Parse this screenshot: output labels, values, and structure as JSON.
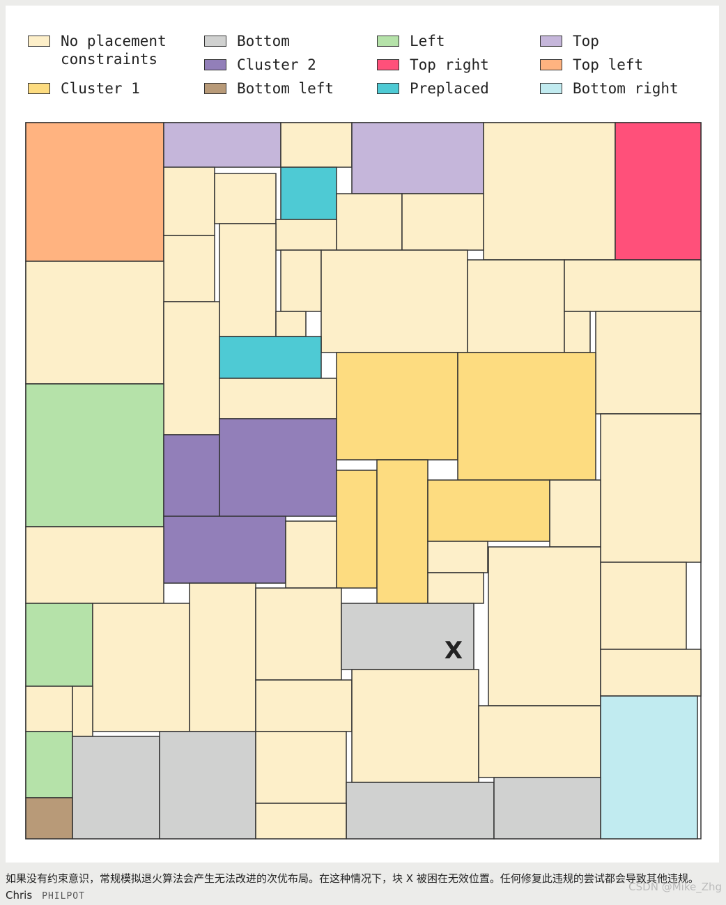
{
  "legend": [
    {
      "label": "No placement constraints",
      "color": "#fdefc9"
    },
    {
      "label": "Cluster 1",
      "color": "#fddc80"
    },
    {
      "label": "Bottom",
      "color": "#d0d1d0"
    },
    {
      "label": "Cluster 2",
      "color": "#927fb9"
    },
    {
      "label": "Bottom left",
      "color": "#b89a78"
    },
    {
      "label": "Left",
      "color": "#b5e2a9"
    },
    {
      "label": "Top right",
      "color": "#ff507a"
    },
    {
      "label": "Preplaced",
      "color": "#4ecad4"
    },
    {
      "label": "Top",
      "color": "#c5b6da"
    },
    {
      "label": "Top left",
      "color": "#ffb380"
    },
    {
      "label": "Bottom right",
      "color": "#c1ebf0"
    }
  ],
  "block_label": "X",
  "caption": "如果没有约束意识，常规模拟退火算法会产生无法改进的次优布局。在这种情况下，块 X 被困在无效位置。任何修复此违规的尝试都会导致其他违规。Chris",
  "credit": "PHILPOT",
  "watermark": "CSDN @Mike_Zhg"
}
